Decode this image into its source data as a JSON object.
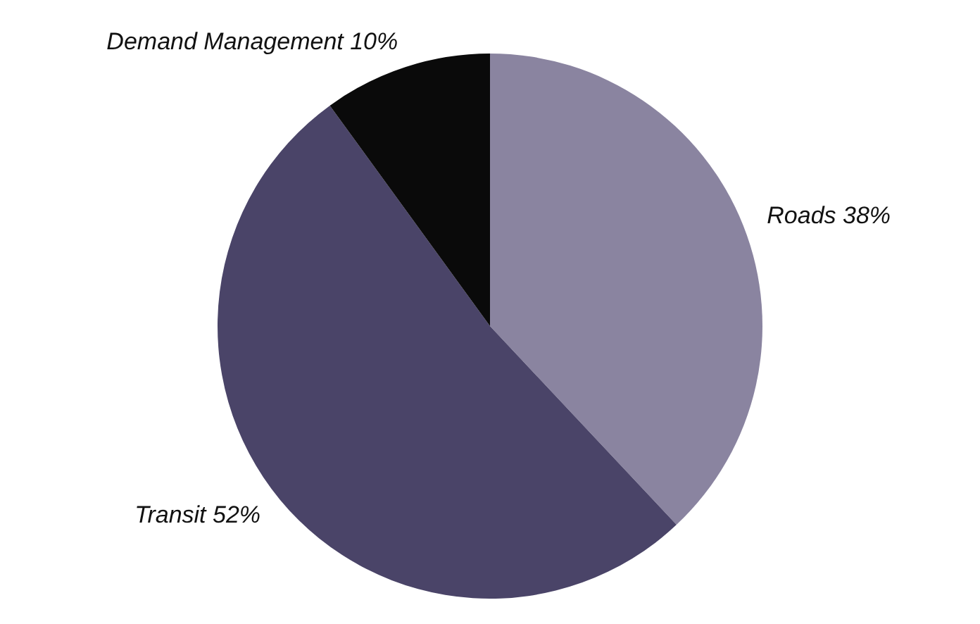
{
  "chart_data": {
    "type": "pie",
    "categories": [
      "Roads",
      "Transit",
      "Demand Management"
    ],
    "values": [
      38,
      52,
      10
    ],
    "value_labels": [
      "38%",
      "52%",
      "10%"
    ],
    "colors": [
      "#8a84a0",
      "#4a4468",
      "#0a0a0a"
    ],
    "legend": false
  }
}
